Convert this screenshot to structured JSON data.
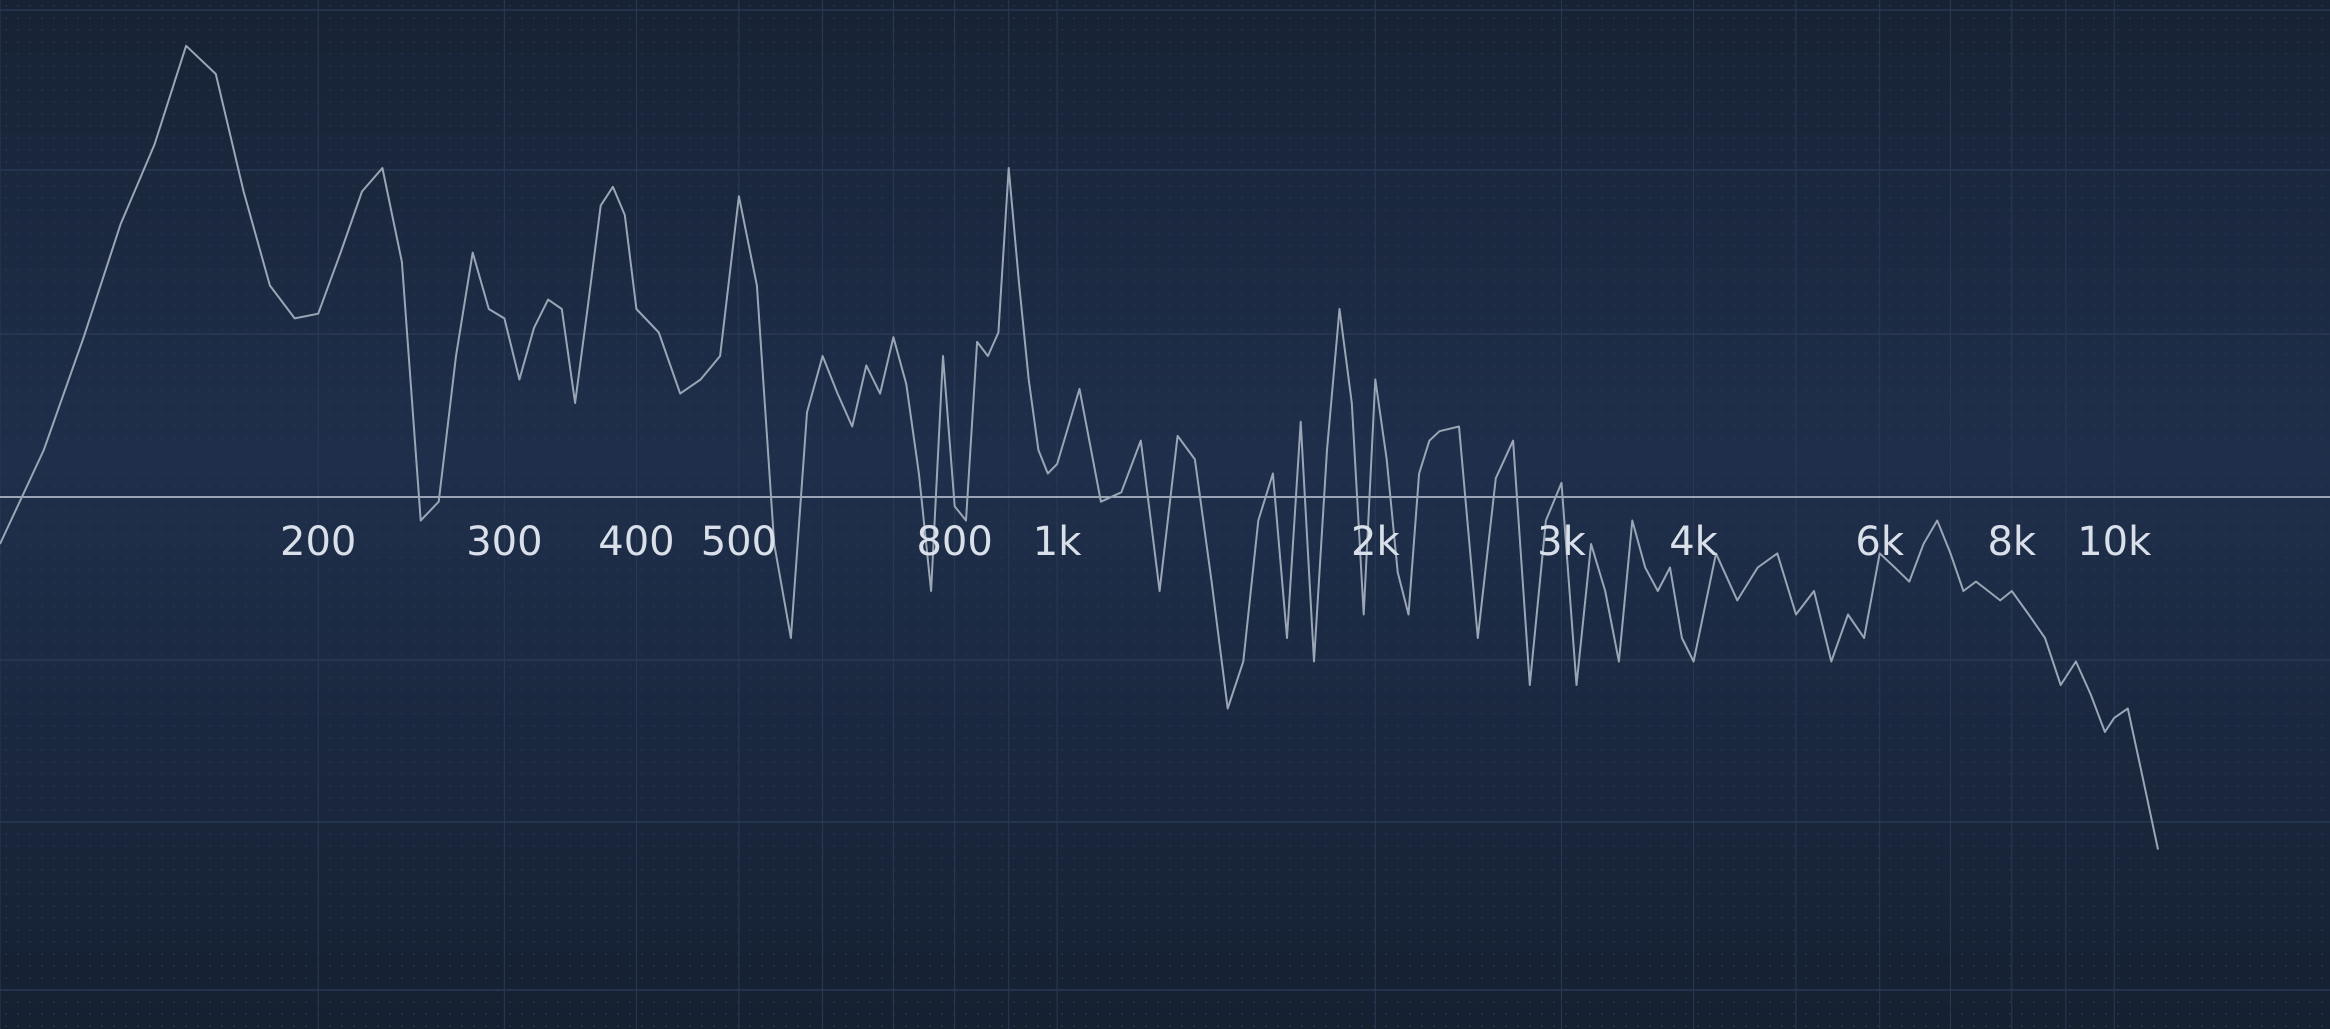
{
  "chart_data": {
    "type": "line",
    "title": "",
    "xlabel": "",
    "ylabel": "",
    "x_scale": "log",
    "xlim": [
      100,
      16000
    ],
    "ylim": [
      -100,
      100
    ],
    "grid": true,
    "reference_line_y": 0,
    "x_ticks": [
      {
        "value": 200,
        "label": "200"
      },
      {
        "value": 300,
        "label": "300"
      },
      {
        "value": 400,
        "label": "400"
      },
      {
        "value": 500,
        "label": "500"
      },
      {
        "value": 800,
        "label": "800"
      },
      {
        "value": 1000,
        "label": "1k"
      },
      {
        "value": 2000,
        "label": "2k"
      },
      {
        "value": 3000,
        "label": "3k"
      },
      {
        "value": 4000,
        "label": "4k"
      },
      {
        "value": 6000,
        "label": "6k"
      },
      {
        "value": 8000,
        "label": "8k"
      },
      {
        "value": 10000,
        "label": "10k"
      }
    ],
    "series": [
      {
        "color": "#9aa6b6",
        "x": [
          100,
          110,
          120,
          130,
          140,
          150,
          160,
          170,
          180,
          190,
          200,
          210,
          220,
          230,
          240,
          250,
          260,
          270,
          280,
          290,
          300,
          310,
          320,
          330,
          340,
          350,
          360,
          370,
          380,
          390,
          400,
          420,
          440,
          460,
          480,
          500,
          520,
          540,
          560,
          580,
          600,
          620,
          640,
          660,
          680,
          700,
          720,
          740,
          760,
          780,
          800,
          820,
          840,
          860,
          880,
          900,
          920,
          940,
          960,
          980,
          1000,
          1050,
          1100,
          1150,
          1200,
          1250,
          1300,
          1350,
          1400,
          1450,
          1500,
          1550,
          1600,
          1650,
          1700,
          1750,
          1800,
          1850,
          1900,
          1950,
          2000,
          2050,
          2100,
          2150,
          2200,
          2250,
          2300,
          2400,
          2500,
          2600,
          2700,
          2800,
          2900,
          3000,
          3100,
          3200,
          3300,
          3400,
          3500,
          3600,
          3700,
          3800,
          3900,
          4000,
          4200,
          4400,
          4600,
          4800,
          5000,
          5200,
          5400,
          5600,
          5800,
          6000,
          6200,
          6400,
          6600,
          6800,
          7000,
          7200,
          7400,
          7600,
          7800,
          8000,
          8300,
          8600,
          8900,
          9200,
          9500,
          9800,
          10000,
          10300,
          10600,
          11000
        ],
        "y": [
          -10,
          10,
          34,
          58,
          75,
          96,
          90,
          65,
          45,
          38,
          39,
          52,
          65,
          70,
          50,
          -5,
          -1,
          30,
          52,
          40,
          38,
          25,
          36,
          42,
          40,
          20,
          41,
          62,
          66,
          60,
          40,
          35,
          22,
          25,
          30,
          64,
          45,
          -10,
          -30,
          18,
          30,
          22,
          15,
          28,
          22,
          34,
          24,
          5,
          -20,
          30,
          -2,
          -5,
          33,
          30,
          35,
          70,
          46,
          25,
          10,
          5,
          7,
          23,
          -1,
          1,
          12,
          -20,
          13,
          8,
          -18,
          -45,
          -35,
          -5,
          5,
          -30,
          16,
          -35,
          10,
          40,
          20,
          -25,
          25,
          8,
          -16,
          -25,
          5,
          12,
          14,
          15,
          -30,
          4,
          12,
          -40,
          -5,
          3,
          -40,
          -10,
          -20,
          -35,
          -5,
          -15,
          -20,
          -15,
          -30,
          -35,
          -12,
          -22,
          -15,
          -12,
          -25,
          -20,
          -35,
          -25,
          -30,
          -12,
          -15,
          -18,
          -10,
          -5,
          -12,
          -20,
          -18,
          -20,
          -22,
          -20,
          -25,
          -30,
          -40,
          -35,
          -42,
          -50,
          -47,
          -45,
          -58,
          -75
        ]
      }
    ]
  }
}
